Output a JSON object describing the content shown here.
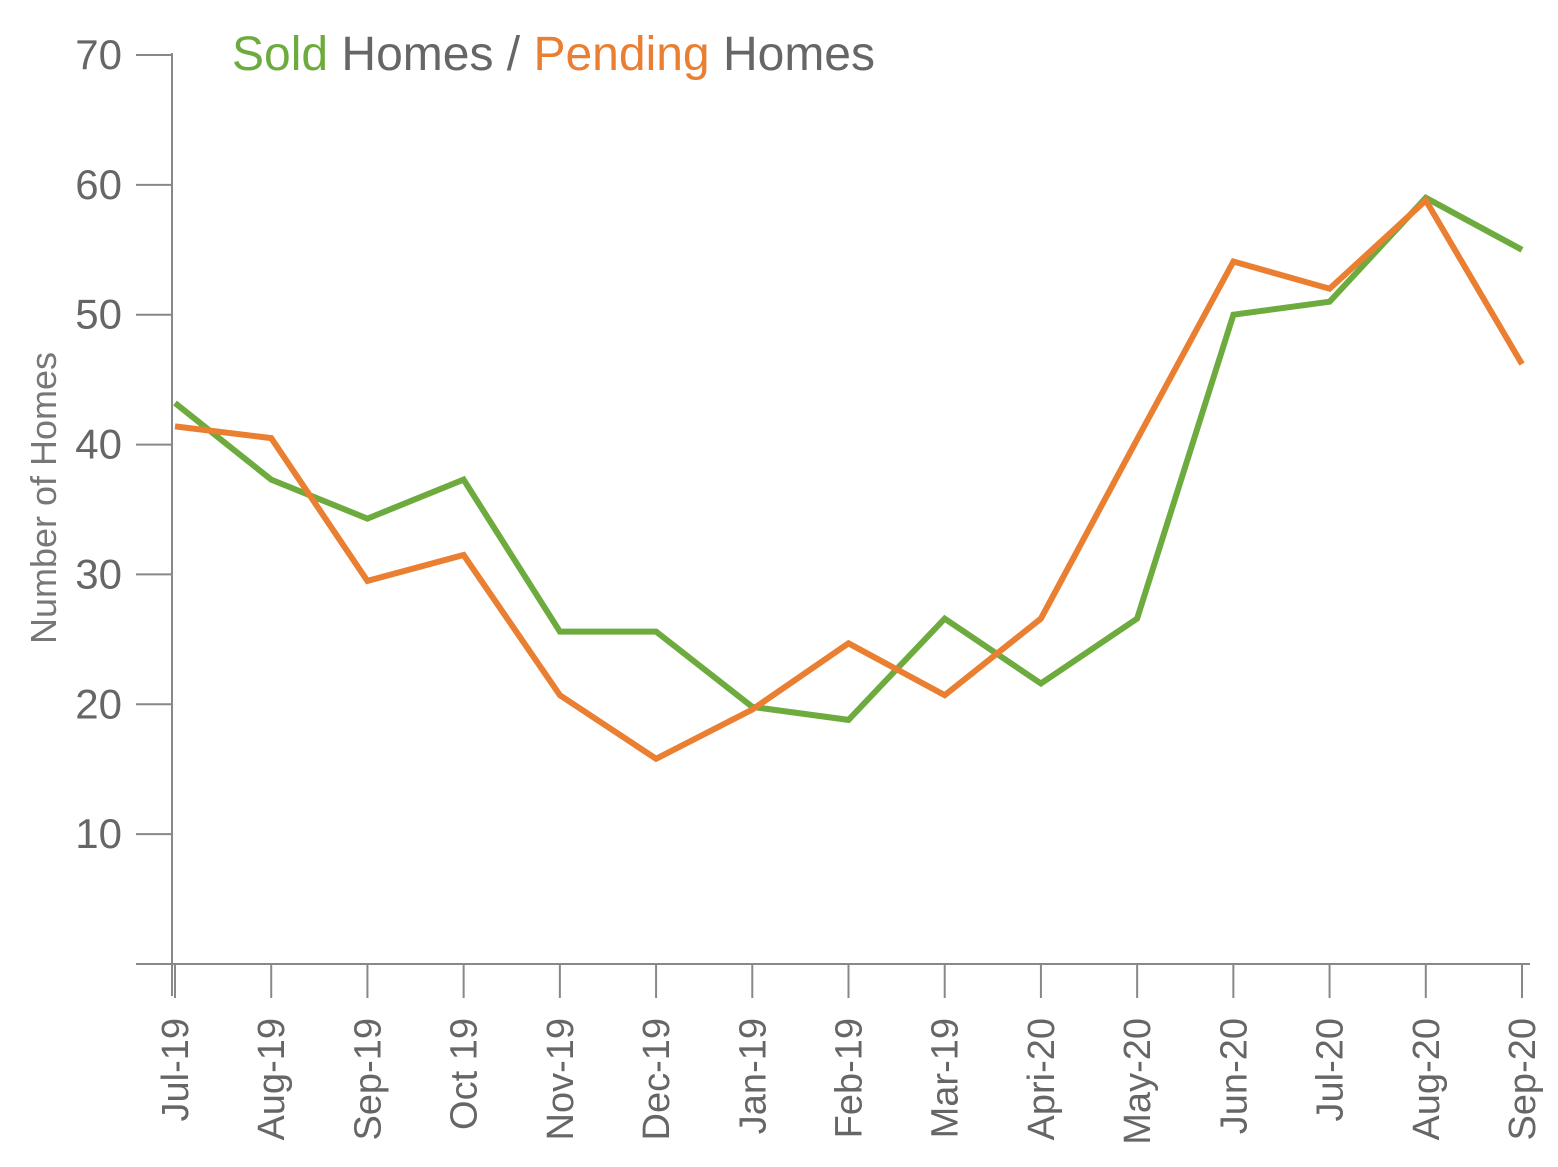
{
  "chart_data": {
    "type": "line",
    "title_parts": [
      {
        "text": "Sold",
        "role": "series-sold"
      },
      {
        "text": " Homes / ",
        "role": "plain"
      },
      {
        "text": "Pending",
        "role": "series-pending"
      },
      {
        "text": " Homes",
        "role": "plain"
      }
    ],
    "ylabel": "Number of Homes",
    "xlabel": "",
    "ylim": [
      0,
      70
    ],
    "yticks": [
      10,
      20,
      30,
      40,
      50,
      60,
      70
    ],
    "categories": [
      "Jul-19",
      "Aug-19",
      "Sep-19",
      "Oct 19",
      "Nov-19",
      "Dec-19",
      "Jan-19",
      "Feb-19",
      "Mar-19",
      "Apri-20",
      "May-20",
      "Jun-20",
      "Jul-20",
      "Aug-20",
      "Sep-20"
    ],
    "series": [
      {
        "key": "sold",
        "values": [
          43.2,
          37.3,
          34.3,
          37.3,
          25.6,
          25.6,
          19.8,
          18.8,
          26.6,
          21.6,
          26.6,
          50.0,
          51.0,
          59.0,
          55.0
        ]
      },
      {
        "key": "pending",
        "values": [
          41.4,
          40.5,
          29.5,
          31.5,
          20.7,
          15.8,
          19.6,
          24.7,
          20.7,
          26.6,
          40.4,
          54.1,
          52.0,
          58.8,
          46.2
        ]
      }
    ],
    "grid": false,
    "legend": "in title",
    "colors": {
      "series-sold": "#6eab3e",
      "series-pending": "#ea7e31",
      "plain": "#666666",
      "axis": "#888888"
    }
  }
}
